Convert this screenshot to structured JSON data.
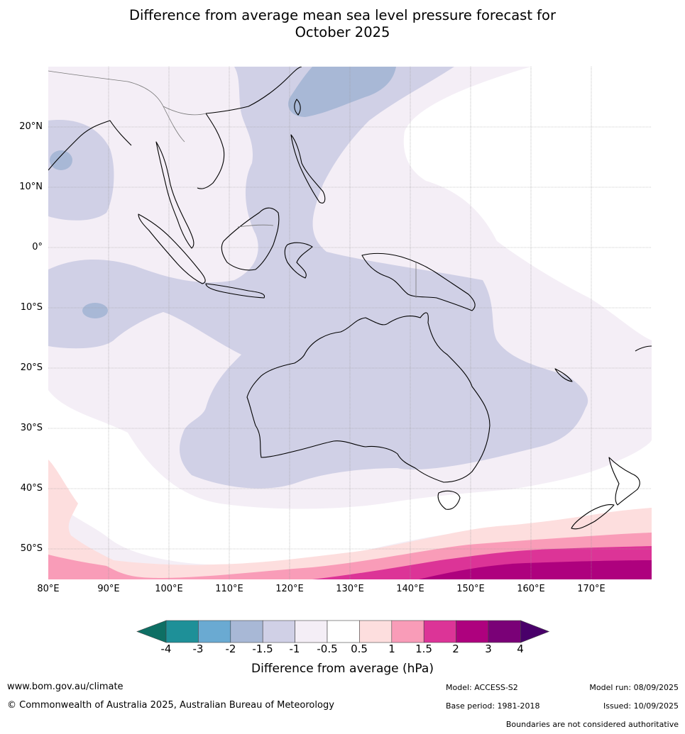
{
  "title_line1": "Difference from average mean sea level pressure forecast for",
  "title_line2": "October 2025",
  "lat_labels": [
    "20°N",
    "10°N",
    "0°",
    "10°S",
    "20°S",
    "30°S",
    "40°S",
    "50°S"
  ],
  "lon_labels": [
    "80°E",
    "90°E",
    "100°E",
    "110°E",
    "120°E",
    "130°E",
    "140°E",
    "150°E",
    "160°E",
    "170°E"
  ],
  "colorbar": {
    "ticks": [
      "-4",
      "-3",
      "-2",
      "-1.5",
      "-1",
      "-0.5",
      "0.5",
      "1",
      "1.5",
      "2",
      "3",
      "4"
    ],
    "colors": [
      "#0e6f64",
      "#1e9098",
      "#6aaad2",
      "#a8b8d6",
      "#d0d0e6",
      "#f4eef6",
      "#ffffff",
      "#fddede",
      "#f99cb8",
      "#dc3497",
      "#ae017e",
      "#7a0177",
      "#49006a"
    ],
    "title": "Difference from average (hPa)"
  },
  "footer": {
    "url": "www.bom.gov.au/climate",
    "copyright": "© Commonwealth of Australia 2025, Australian Bureau of Meteorology",
    "model": "Model: ACCESS-S2",
    "base_period": "Base period: 1981-2018",
    "model_run": "Model run: 08/09/2025",
    "issued": "Issued: 10/09/2025",
    "disclaimer": "Boundaries are not considered authoritative"
  }
}
